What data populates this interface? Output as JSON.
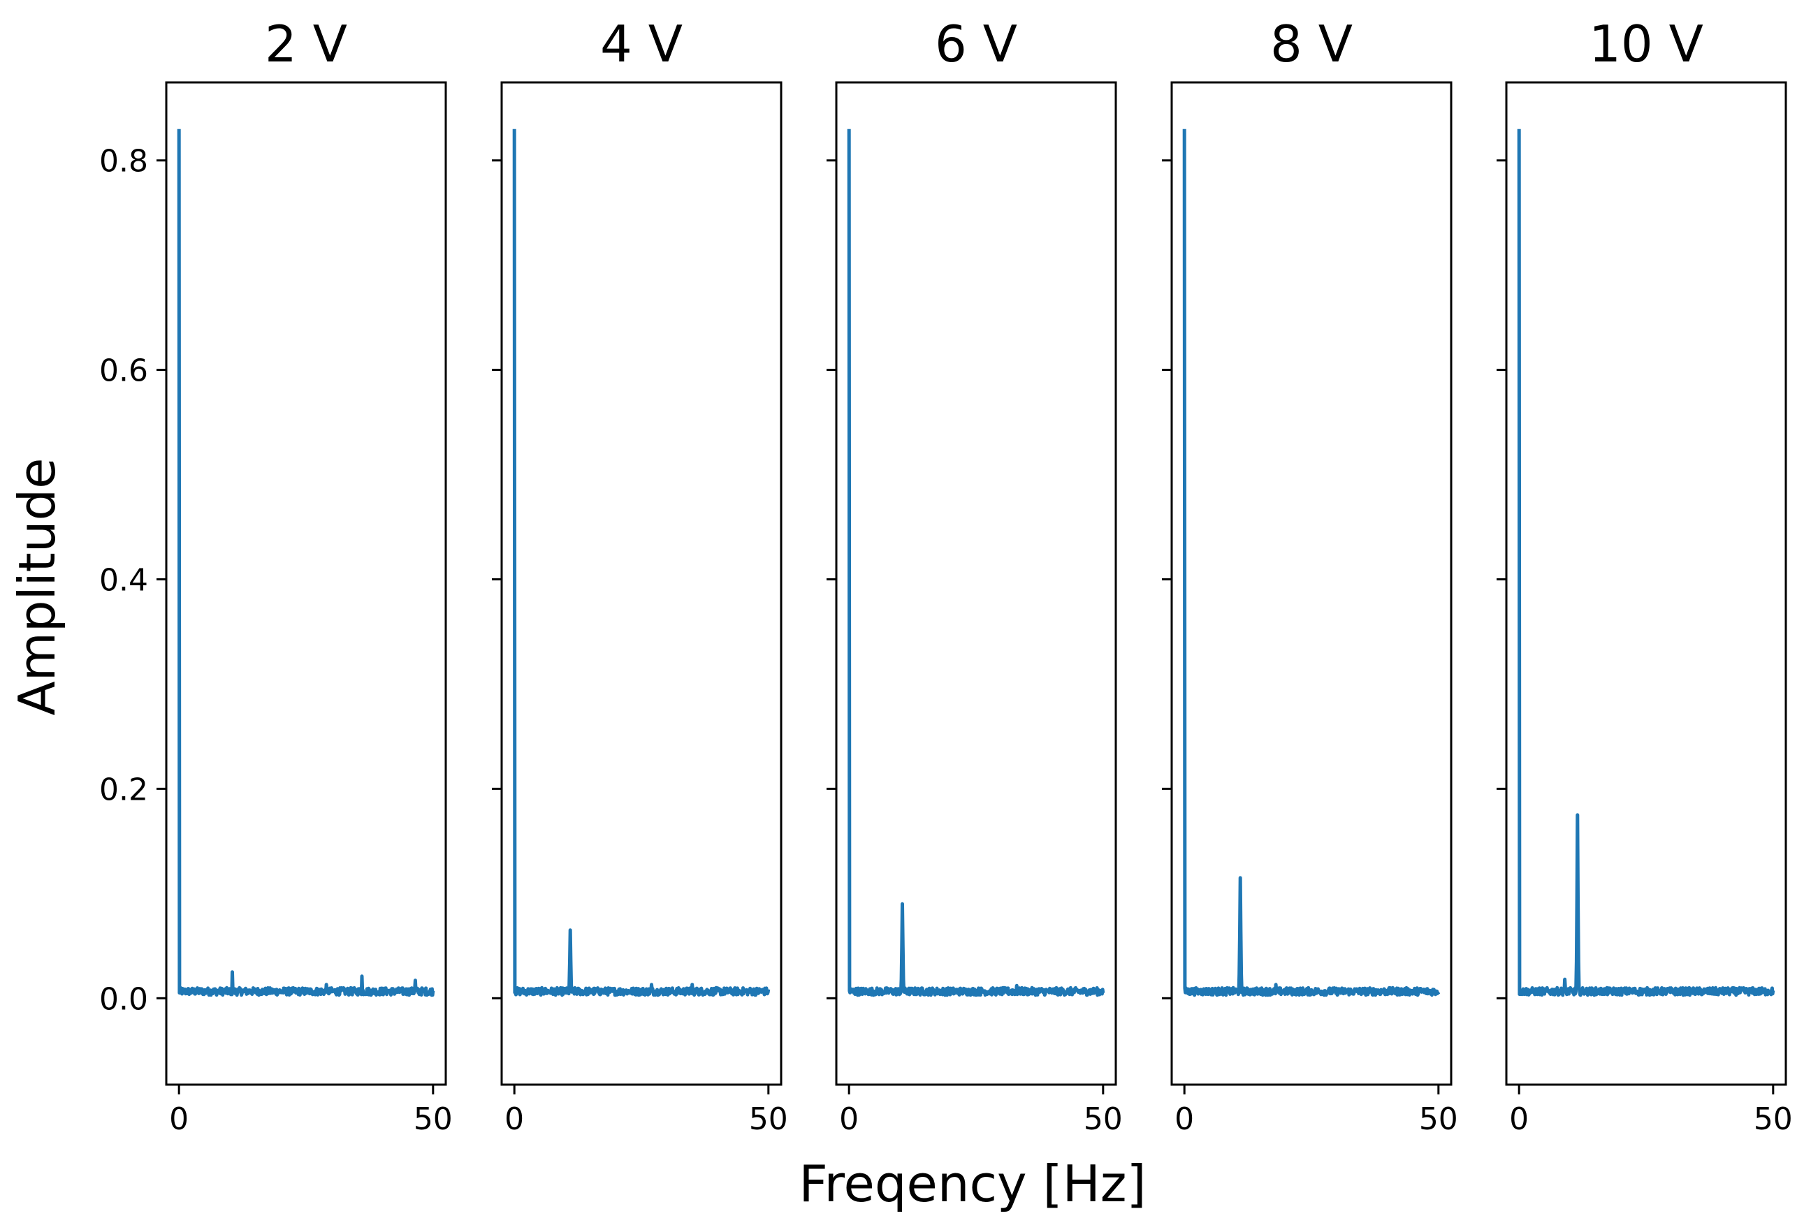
{
  "chart_data": {
    "type": "line",
    "xlabel": "Freqency [Hz]",
    "ylabel": "Amplitude",
    "line_color": "#1f77b4",
    "grid": false,
    "sharey": true,
    "xlim": [
      -2.5,
      52.5
    ],
    "ylim": [
      -0.0825,
      0.8745
    ],
    "xticks": [
      0,
      50
    ],
    "yticks": [
      0.0,
      0.2,
      0.4,
      0.6,
      0.8
    ],
    "ytick_labels": [
      "0.0",
      "0.2",
      "0.4",
      "0.6",
      "0.8"
    ],
    "panels": [
      {
        "title": "2 V",
        "dc": 0.83,
        "peak_freq": null,
        "peak_amp": null,
        "spurs": [
          [
            10.5,
            0.025
          ],
          [
            36,
            0.021
          ],
          [
            46.5,
            0.017
          ],
          [
            29,
            0.013
          ]
        ]
      },
      {
        "title": "4 V",
        "dc": 0.83,
        "peak_freq": 11,
        "peak_amp": 0.065,
        "spurs": [
          [
            27,
            0.013
          ],
          [
            35,
            0.013
          ]
        ]
      },
      {
        "title": "6 V",
        "dc": 0.83,
        "peak_freq": 10.5,
        "peak_amp": 0.09,
        "spurs": [
          [
            33,
            0.012
          ]
        ]
      },
      {
        "title": "8 V",
        "dc": 0.83,
        "peak_freq": 11,
        "peak_amp": 0.115,
        "spurs": [
          [
            18,
            0.013
          ]
        ]
      },
      {
        "title": "10 V",
        "dc": 0.83,
        "peak_freq": 11.5,
        "peak_amp": 0.175,
        "spurs": [
          [
            9,
            0.018
          ]
        ]
      }
    ]
  }
}
